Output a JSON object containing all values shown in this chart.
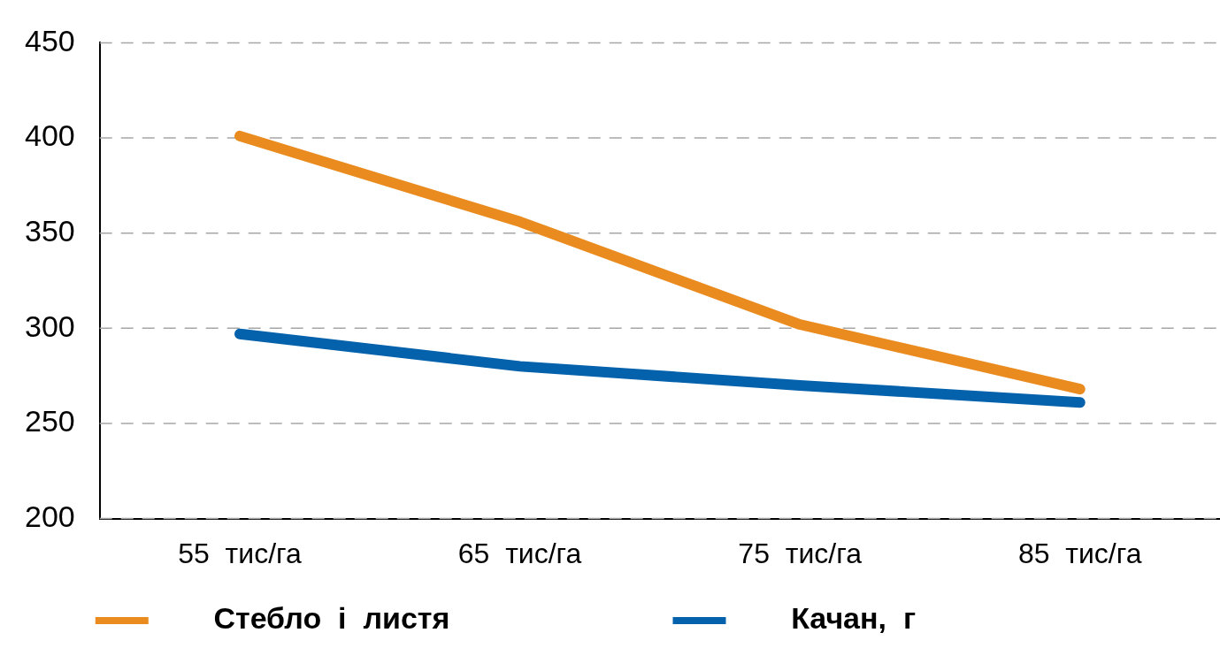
{
  "chart_data": {
    "type": "line",
    "categories": [
      "55  тис/га",
      "65  тис/га",
      "75  тис/га",
      "85  тис/га"
    ],
    "series": [
      {
        "name": "Стебло  і  листя",
        "color": "#e98b1f",
        "values": [
          401,
          356,
          302,
          268
        ]
      },
      {
        "name": "Качан,  г",
        "color": "#0461ab",
        "values": [
          297,
          280,
          270,
          261
        ]
      }
    ],
    "ylim": [
      200,
      450
    ],
    "yticks": [
      200,
      250,
      300,
      350,
      400,
      450
    ],
    "grid": "y",
    "legend": "bottom",
    "marker": "none",
    "line_style": "solid"
  }
}
